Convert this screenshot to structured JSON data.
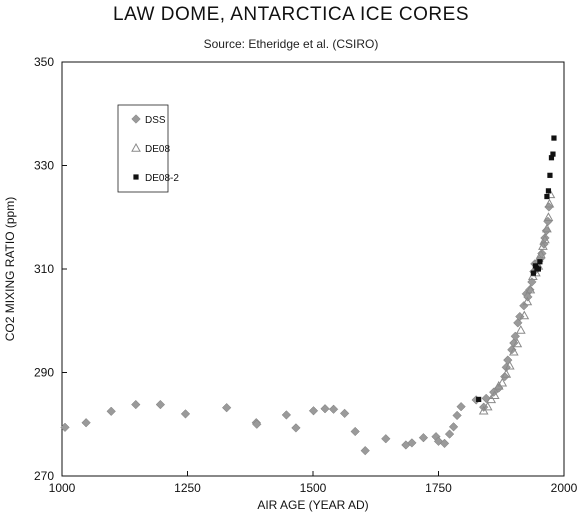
{
  "chart_data": {
    "type": "scatter",
    "title": "LAW DOME, ANTARCTICA ICE CORES",
    "subtitle": "Source:  Etheridge et al. (CSIRO)",
    "xlabel": "AIR AGE  (YEAR AD)",
    "ylabel": "CO2 MIXING RATIO  (ppm)",
    "xlim": [
      1000,
      2000
    ],
    "ylim": [
      270,
      350
    ],
    "xticks": [
      1000,
      1250,
      1500,
      1750,
      2000
    ],
    "yticks": [
      270,
      290,
      310,
      330,
      350
    ],
    "grid": false,
    "legend_position": "top-left",
    "series": [
      {
        "name": "DSS",
        "marker": "diamond",
        "color": "#9a9a9a",
        "points": [
          [
            1006,
            279.4
          ],
          [
            1048,
            280.3
          ],
          [
            1098,
            282.5
          ],
          [
            1147,
            283.8
          ],
          [
            1196,
            283.8
          ],
          [
            1246,
            282.0
          ],
          [
            1328,
            283.2
          ],
          [
            1387,
            280.3
          ],
          [
            1388,
            280.0
          ],
          [
            1447,
            281.8
          ],
          [
            1466,
            279.3
          ],
          [
            1501,
            282.6
          ],
          [
            1524,
            283.0
          ],
          [
            1541,
            282.9
          ],
          [
            1563,
            282.1
          ],
          [
            1584,
            278.6
          ],
          [
            1604,
            274.9
          ],
          [
            1645,
            277.2
          ],
          [
            1685,
            276.0
          ],
          [
            1697,
            276.4
          ],
          [
            1720,
            277.4
          ],
          [
            1745,
            277.6
          ],
          [
            1750,
            276.7
          ],
          [
            1762,
            276.3
          ],
          [
            1772,
            278.1
          ],
          [
            1780,
            279.5
          ],
          [
            1787,
            281.7
          ],
          [
            1795,
            283.4
          ],
          [
            1825,
            284.7
          ],
          [
            1840,
            283.3
          ],
          [
            1845,
            285.0
          ],
          [
            1860,
            286.2
          ],
          [
            1870,
            287.0
          ],
          [
            1882,
            289.2
          ],
          [
            1885,
            291.0
          ],
          [
            1888,
            292.4
          ],
          [
            1896,
            294.4
          ],
          [
            1900,
            295.7
          ],
          [
            1903,
            297.0
          ],
          [
            1908,
            299.6
          ],
          [
            1912,
            300.8
          ],
          [
            1920,
            302.9
          ],
          [
            1925,
            305.2
          ],
          [
            1928,
            304.6
          ],
          [
            1932,
            306.0
          ],
          [
            1936,
            307.5
          ],
          [
            1940,
            309.5
          ],
          [
            1942,
            311.0
          ],
          [
            1946,
            310.0
          ],
          [
            1950,
            311.5
          ],
          [
            1953,
            312.0
          ],
          [
            1956,
            313.0
          ],
          [
            1960,
            314.8
          ],
          [
            1962,
            316.0
          ],
          [
            1965,
            317.4
          ],
          [
            1968,
            319.2
          ],
          [
            1970,
            322.0
          ]
        ]
      },
      {
        "name": "DE08",
        "marker": "triangle",
        "color": "#8a8a8a",
        "points": [
          [
            1840,
            282.6
          ],
          [
            1848,
            283.4
          ],
          [
            1855,
            284.8
          ],
          [
            1862,
            285.6
          ],
          [
            1870,
            287.4
          ],
          [
            1877,
            288.0
          ],
          [
            1885,
            289.7
          ],
          [
            1892,
            291.3
          ],
          [
            1900,
            294.0
          ],
          [
            1907,
            295.6
          ],
          [
            1914,
            298.2
          ],
          [
            1921,
            301.0
          ],
          [
            1927,
            303.7
          ],
          [
            1933,
            306.0
          ],
          [
            1938,
            308.6
          ],
          [
            1944,
            309.3
          ],
          [
            1949,
            310.6
          ],
          [
            1954,
            312.8
          ],
          [
            1958,
            314.4
          ],
          [
            1962,
            315.7
          ],
          [
            1966,
            317.8
          ],
          [
            1969,
            320.0
          ],
          [
            1971,
            322.6
          ],
          [
            1973,
            324.4
          ]
        ]
      },
      {
        "name": "DE08-2",
        "marker": "square",
        "color": "#111111",
        "points": [
          [
            1830,
            284.8
          ],
          [
            1939,
            309.2
          ],
          [
            1943,
            310.6
          ],
          [
            1946,
            310.2
          ],
          [
            1949,
            310.0
          ],
          [
            1952,
            311.4
          ],
          [
            1966,
            324.0
          ],
          [
            1969,
            325.1
          ],
          [
            1972,
            328.1
          ],
          [
            1975,
            331.5
          ],
          [
            1978,
            332.2
          ],
          [
            1980,
            335.3
          ]
        ]
      }
    ]
  }
}
